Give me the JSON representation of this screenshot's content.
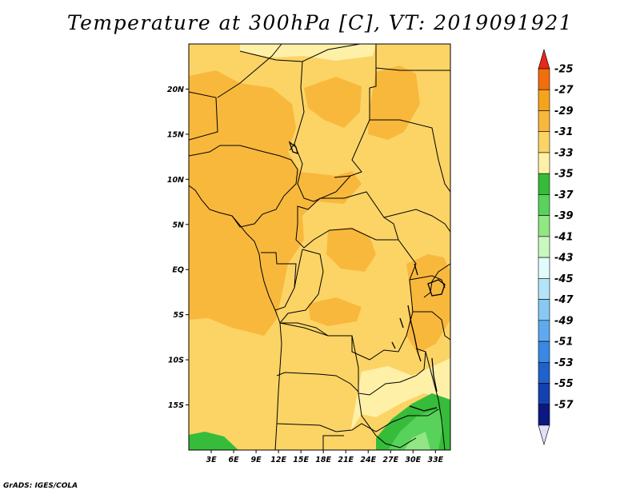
{
  "title": "Temperature at 300hPa [C], VT: 2019091921",
  "credit": "GrADS: IGES/COLA",
  "map": {
    "variable": "Temperature",
    "level": "300hPa",
    "units": "C",
    "valid_time": "2019091921",
    "lon_range": [
      0,
      35
    ],
    "lat_range": [
      -20,
      25
    ],
    "lon_ticks": [
      "3E",
      "6E",
      "9E",
      "12E",
      "15E",
      "18E",
      "21E",
      "24E",
      "27E",
      "30E",
      "33E"
    ],
    "lat_ticks": [
      "20N",
      "15N",
      "10N",
      "5N",
      "EQ",
      "5S",
      "10S",
      "15S"
    ]
  },
  "colorbar": {
    "labels": [
      "-25",
      "-27",
      "-29",
      "-31",
      "-33",
      "-35",
      "-37",
      "-39",
      "-41",
      "-43",
      "-45",
      "-47",
      "-49",
      "-51",
      "-53",
      "-55",
      "-57"
    ],
    "colors": [
      "#e8281a",
      "#f06e0c",
      "#f4a41c",
      "#f8b83c",
      "#fcd466",
      "#fff0a8",
      "#36bc3a",
      "#58d25a",
      "#92e684",
      "#c8f8c0",
      "#e2fcfc",
      "#b4e4f8",
      "#88c8f4",
      "#5eaaee",
      "#3a88e2",
      "#2062cc",
      "#1440b0",
      "#0c1880",
      "#e0e0f8"
    ]
  },
  "fills": {
    "t31": "#fcd466",
    "t33": "#fff0a8",
    "t29": "#f8b83c",
    "t35": "#36bc3a",
    "t37": "#58d25a",
    "t39": "#92e684"
  }
}
